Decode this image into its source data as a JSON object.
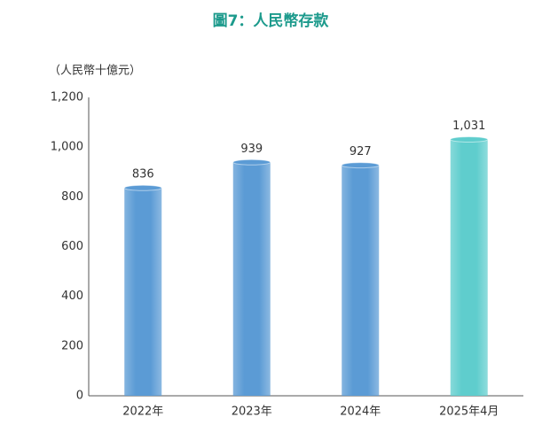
{
  "chart_data": {
    "type": "bar",
    "title": "圖7：人民幣存款",
    "y_label": "（人民幣十億元）",
    "categories": [
      "2022年",
      "2023年",
      "2024年",
      "2025年4月"
    ],
    "values": [
      836,
      939,
      927,
      1031
    ],
    "value_labels": [
      "836",
      "939",
      "927",
      "1,031"
    ],
    "colors": [
      "#5b9bd5",
      "#5b9bd5",
      "#5b9bd5",
      "#5fcdcd"
    ],
    "ylim": [
      0,
      1200
    ],
    "yticks": [
      0,
      200,
      400,
      600,
      800,
      {
        "value": 1000,
        "label": "1,000"
      },
      {
        "value": 1200,
        "label": "1,200"
      }
    ],
    "grid": false
  }
}
